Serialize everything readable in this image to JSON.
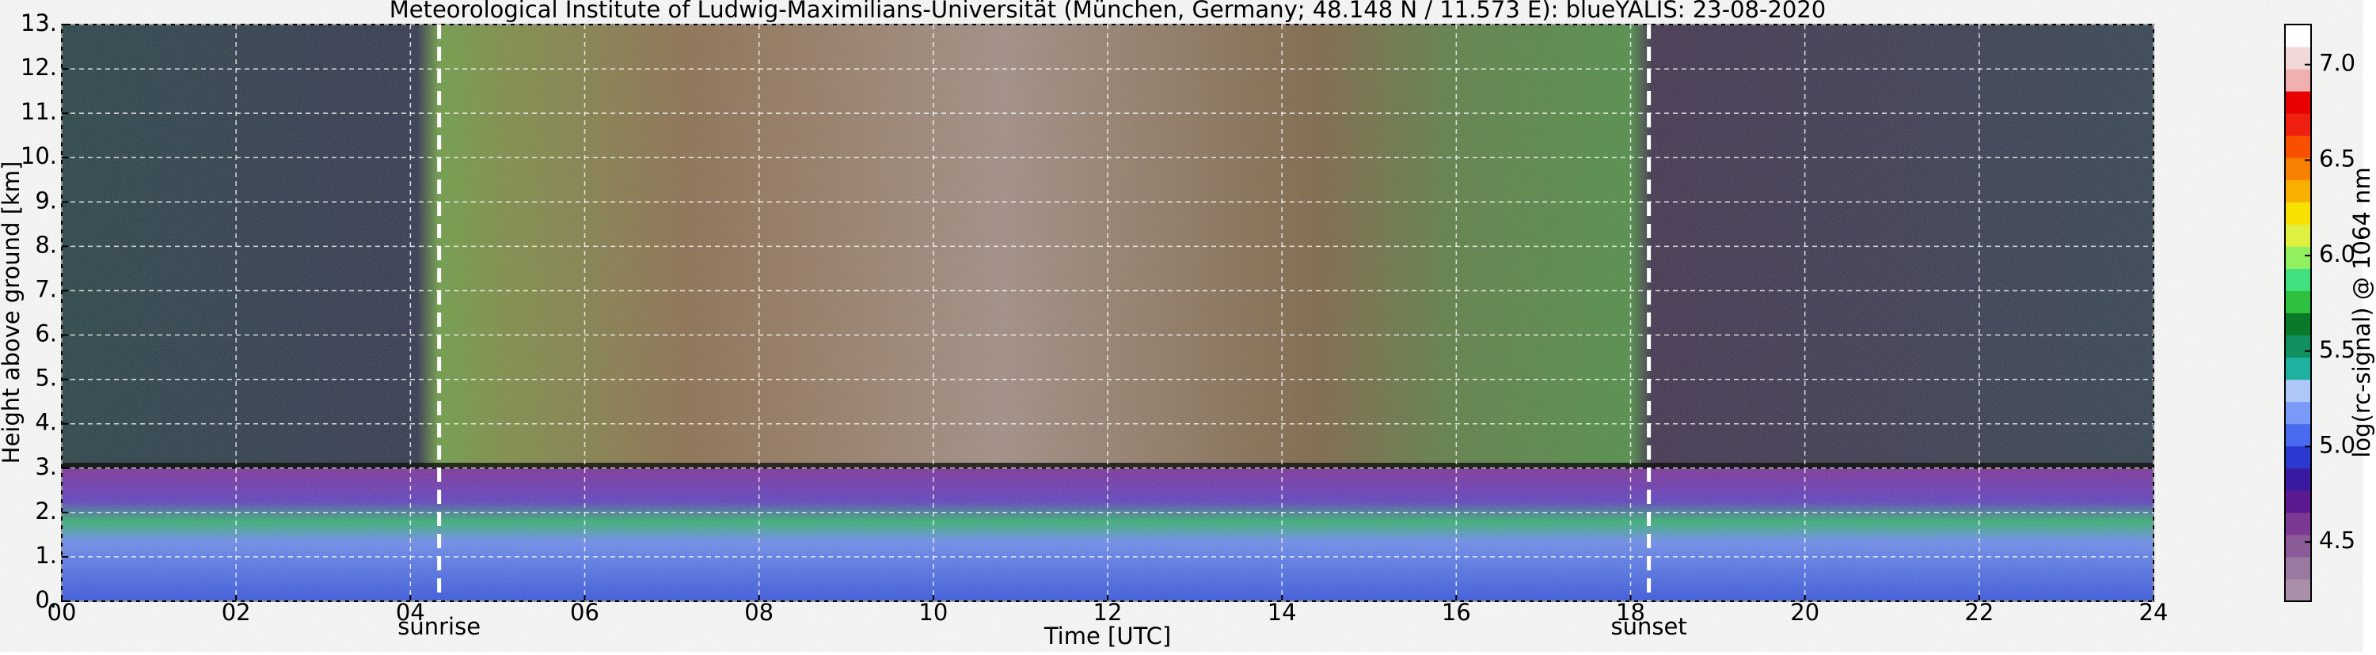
{
  "chart_data": {
    "type": "heatmap",
    "title": "Meteorological Institute of Ludwig-Maximilians-Universität (München, Germany; 48.148 N / 11.573 E):    blueYALIS: 23-08-2020",
    "xlabel": "Time [UTC]",
    "ylabel": "Height above ground [km]",
    "xlim": [
      0,
      24
    ],
    "xticks": [
      {
        "value": 0,
        "label": "00"
      },
      {
        "value": 2,
        "label": "02"
      },
      {
        "value": 4,
        "label": "04"
      },
      {
        "value": 6,
        "label": "06"
      },
      {
        "value": 8,
        "label": "08"
      },
      10,
      12,
      14,
      16,
      18,
      20,
      22,
      24
    ],
    "ylim": [
      0,
      13
    ],
    "yticks": [
      {
        "value": 0,
        "label": "0."
      },
      {
        "value": 1,
        "label": "1."
      },
      {
        "value": 2,
        "label": "2."
      },
      {
        "value": 3,
        "label": "3."
      },
      {
        "value": 4,
        "label": "4."
      },
      {
        "value": 5,
        "label": "5."
      },
      {
        "value": 6,
        "label": "6."
      },
      {
        "value": 7,
        "label": "7."
      },
      {
        "value": 8,
        "label": "8."
      },
      {
        "value": 9,
        "label": "9."
      },
      {
        "value": 10,
        "label": "10."
      },
      {
        "value": 11,
        "label": "11."
      },
      {
        "value": 12,
        "label": "12."
      },
      {
        "value": 13,
        "label": "13."
      }
    ],
    "grid": true,
    "annotations": [
      {
        "x": 4.33,
        "label": "sunrise"
      },
      {
        "x": 18.21,
        "label": "sunset"
      }
    ],
    "colorbar": {
      "label": "log(rc-signal) @ 1064 nm",
      "lim": [
        4.19,
        7.21
      ],
      "ticks": [
        4.5,
        {
          "value": 5,
          "label": "5.0"
        },
        5.5,
        {
          "value": 6,
          "label": "6.0"
        },
        6.5,
        {
          "value": 7,
          "label": "7.0"
        }
      ],
      "colors": [
        "#a990a8",
        "#9a7aa0",
        "#8c5c98",
        "#7a3a94",
        "#5c1a90",
        "#3a1aa0",
        "#2a3ad0",
        "#4a6af0",
        "#7a9af8",
        "#b0c8f8",
        "#20b0a0",
        "#109060",
        "#0a7a2a",
        "#30c040",
        "#40e080",
        "#90f060",
        "#e0f040",
        "#f8e000",
        "#f8b000",
        "#f88000",
        "#f85000",
        "#f02010",
        "#e80000",
        "#f0b0b0",
        "#f0d8d8",
        "#ffffff"
      ]
    }
  }
}
